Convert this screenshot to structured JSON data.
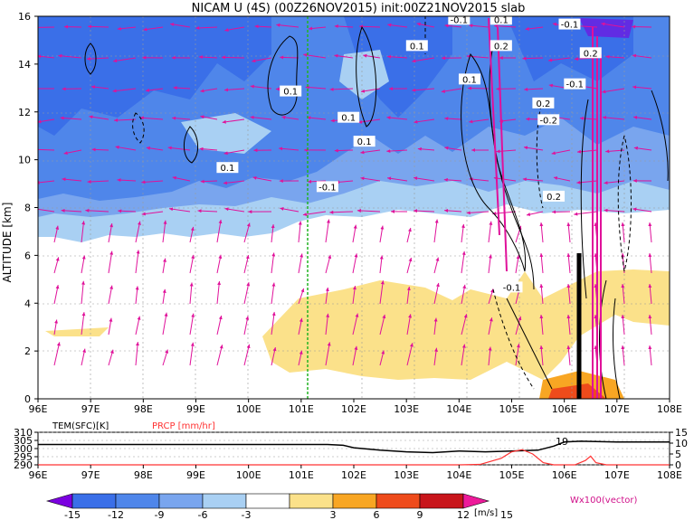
{
  "chart_data": {
    "type": "heatmap",
    "title": "NICAM U (4S) (00Z26NOV2015) init:00Z21NOV2015 slab",
    "main_panel": {
      "ylabel": "ALTITUDE [km]",
      "ylim": [
        0,
        16
      ],
      "yticks": [
        "0",
        "2",
        "4",
        "6",
        "8",
        "10",
        "12",
        "14",
        "16"
      ],
      "xlim": [
        96,
        108
      ],
      "xticks": [
        "96E",
        "97E",
        "98E",
        "99E",
        "100E",
        "101E",
        "102E",
        "103E",
        "104E",
        "105E",
        "106E",
        "107E",
        "108E"
      ],
      "reference_line_lon": 101,
      "contour_labels": [
        {
          "text": "0.1",
          "lon": 99.6,
          "alt": 9.6
        },
        {
          "text": "0.1",
          "lon": 100.8,
          "alt": 12.8
        },
        {
          "text": "0.1",
          "lon": 101.9,
          "alt": 11.7
        },
        {
          "text": "0.1",
          "lon": 102.2,
          "alt": 10.7
        },
        {
          "text": "-0.1",
          "lon": 101.5,
          "alt": 8.8
        },
        {
          "text": "0.1",
          "lon": 103.2,
          "alt": 14.7
        },
        {
          "text": "-0.1",
          "lon": 104.0,
          "alt": 15.8
        },
        {
          "text": "0.1",
          "lon": 104.8,
          "alt": 15.8
        },
        {
          "text": "0.2",
          "lon": 104.8,
          "alt": 14.7
        },
        {
          "text": "0.1",
          "lon": 104.2,
          "alt": 13.3
        },
        {
          "text": "0.2",
          "lon": 105.6,
          "alt": 12.3
        },
        {
          "text": "-0.1",
          "lon": 106.1,
          "alt": 15.6
        },
        {
          "text": "-0.2",
          "lon": 105.7,
          "alt": 11.6
        },
        {
          "text": "0.2",
          "lon": 105.8,
          "alt": 8.4
        },
        {
          "text": "-0.1",
          "lon": 105.0,
          "alt": 4.6
        },
        {
          "text": "-0.1",
          "lon": 106.2,
          "alt": 13.1
        },
        {
          "text": "0.2",
          "lon": 106.5,
          "alt": 14.4
        }
      ]
    },
    "colorbar": {
      "unit": "[m/s]",
      "levels": [
        "-15",
        "-12",
        "-9",
        "-6",
        "-3",
        "3",
        "6",
        "9",
        "12",
        "15"
      ],
      "colors": [
        "#7b00e0",
        "#3a6fe8",
        "#4f86ea",
        "#79a5ee",
        "#a9d0f3",
        "#ffffff",
        "#fbe18a",
        "#f8a623",
        "#ee4b1b",
        "#c8151b",
        "#ed1a9a"
      ]
    },
    "vector_label": "Wx100(vector)",
    "bottom_panel": {
      "left_label": "TEM(SFC)[K]",
      "right_label": "PRCP [mm/hr]",
      "left_ticks": [
        "290",
        "295",
        "300",
        "305",
        "310"
      ],
      "right_ticks": [
        "0",
        "5",
        "10",
        "15"
      ],
      "xticks": [
        "96E",
        "97E",
        "98E",
        "99E",
        "100E",
        "101E",
        "102E",
        "103E",
        "104E",
        "105E",
        "106E",
        "107E",
        "108E"
      ],
      "annotation": "19",
      "series": [
        {
          "name": "TEM(SFC)[K]",
          "color": "#000000",
          "lon": [
            96,
            96.5,
            97,
            98,
            99,
            100,
            101,
            101.5,
            101.8,
            102,
            102.5,
            103,
            103.5,
            104,
            104.5,
            105,
            105.5,
            105.8,
            106,
            106.3,
            107,
            108
          ],
          "values": [
            302.5,
            302.5,
            302.5,
            302.5,
            302.5,
            302.5,
            302.5,
            302.5,
            302.0,
            300.5,
            299.0,
            298.0,
            297.5,
            298.5,
            298.0,
            298.5,
            299.0,
            301.5,
            304.0,
            304.5,
            304.0,
            304.0
          ]
        },
        {
          "name": "PRCP [mm/hr]",
          "color": "#ff3333",
          "lon": [
            96,
            104,
            104.4,
            104.8,
            105.0,
            105.2,
            105.4,
            105.6,
            105.8,
            106.2,
            106.4,
            106.5,
            106.6,
            106.8,
            108
          ],
          "values": [
            0,
            0,
            0.2,
            3,
            6,
            7,
            5,
            1,
            0,
            0,
            2,
            4,
            1,
            0,
            0
          ]
        }
      ]
    }
  }
}
